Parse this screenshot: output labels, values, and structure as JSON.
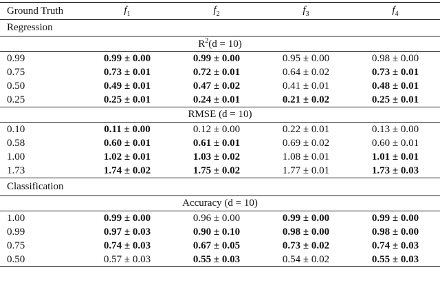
{
  "header": {
    "ground_truth": "Ground Truth",
    "functions": [
      {
        "base": "f",
        "sub": "1"
      },
      {
        "base": "f",
        "sub": "2"
      },
      {
        "base": "f",
        "sub": "3"
      },
      {
        "base": "f",
        "sub": "4"
      }
    ]
  },
  "sections": [
    {
      "title": "Regression",
      "groups": [
        {
          "metric": {
            "base": "R",
            "sup": "2",
            "rest": "(d = 10)"
          },
          "rows": [
            {
              "truth": "0.99",
              "cells": [
                {
                  "text": "0.99 ± 0.00",
                  "bold": true
                },
                {
                  "text": "0.99 ± 0.00",
                  "bold": true
                },
                {
                  "text": "0.95 ± 0.00",
                  "bold": false
                },
                {
                  "text": "0.98 ± 0.00",
                  "bold": false
                }
              ]
            },
            {
              "truth": "0.75",
              "cells": [
                {
                  "text": "0.73 ± 0.01",
                  "bold": true
                },
                {
                  "text": "0.72 ± 0.01",
                  "bold": true
                },
                {
                  "text": "0.64 ± 0.02",
                  "bold": false
                },
                {
                  "text": "0.73 ± 0.01",
                  "bold": true
                }
              ]
            },
            {
              "truth": "0.50",
              "cells": [
                {
                  "text": "0.49 ± 0.01",
                  "bold": true
                },
                {
                  "text": "0.47 ± 0.02",
                  "bold": true
                },
                {
                  "text": "0.41 ± 0.01",
                  "bold": false
                },
                {
                  "text": "0.48 ± 0.01",
                  "bold": true
                }
              ]
            },
            {
              "truth": "0.25",
              "cells": [
                {
                  "text": "0.25 ± 0.01",
                  "bold": true
                },
                {
                  "text": "0.24 ± 0.01",
                  "bold": true
                },
                {
                  "text": "0.21 ± 0.02",
                  "bold": true
                },
                {
                  "text": "0.25 ± 0.01",
                  "bold": true
                }
              ]
            }
          ]
        },
        {
          "metric": {
            "base": "RMSE (d = 10)"
          },
          "rows": [
            {
              "truth": "0.10",
              "cells": [
                {
                  "text": "0.11 ± 0.00",
                  "bold": true
                },
                {
                  "text": "0.12 ± 0.00",
                  "bold": false
                },
                {
                  "text": "0.22 ± 0.01",
                  "bold": false
                },
                {
                  "text": "0.13 ± 0.00",
                  "bold": false
                }
              ]
            },
            {
              "truth": "0.58",
              "cells": [
                {
                  "text": "0.60 ± 0.01",
                  "bold": true
                },
                {
                  "text": "0.61 ± 0.01",
                  "bold": true
                },
                {
                  "text": "0.69 ± 0.02",
                  "bold": false
                },
                {
                  "text": "0.60 ± 0.01",
                  "bold": false
                }
              ]
            },
            {
              "truth": "1.00",
              "cells": [
                {
                  "text": "1.02 ± 0.01",
                  "bold": true
                },
                {
                  "text": "1.03 ± 0.02",
                  "bold": true
                },
                {
                  "text": "1.08 ± 0.01",
                  "bold": false
                },
                {
                  "text": "1.01 ± 0.01",
                  "bold": true
                }
              ]
            },
            {
              "truth": "1.73",
              "cells": [
                {
                  "text": "1.74 ± 0.02",
                  "bold": true
                },
                {
                  "text": "1.75 ± 0.02",
                  "bold": true
                },
                {
                  "text": "1.77 ± 0.01",
                  "bold": false
                },
                {
                  "text": "1.73 ± 0.03",
                  "bold": true
                }
              ]
            }
          ]
        }
      ]
    },
    {
      "title": "Classification",
      "groups": [
        {
          "metric": {
            "base": "Accuracy (d = 10)"
          },
          "rows": [
            {
              "truth": "1.00",
              "cells": [
                {
                  "text": "0.99 ± 0.00",
                  "bold": true
                },
                {
                  "text": "0.96 ± 0.00",
                  "bold": false
                },
                {
                  "text": "0.99 ± 0.00",
                  "bold": true
                },
                {
                  "text": "0.99 ± 0.00",
                  "bold": true
                }
              ]
            },
            {
              "truth": "0.99",
              "cells": [
                {
                  "text": "0.97 ± 0.03",
                  "bold": true
                },
                {
                  "text": "0.90 ± 0.10",
                  "bold": true
                },
                {
                  "text": "0.98 ± 0.00",
                  "bold": true
                },
                {
                  "text": "0.98 ± 0.00",
                  "bold": true
                }
              ]
            },
            {
              "truth": "0.75",
              "cells": [
                {
                  "text": "0.74 ± 0.03",
                  "bold": true
                },
                {
                  "text": "0.67 ± 0.05",
                  "bold": true
                },
                {
                  "text": "0.73 ± 0.02",
                  "bold": true
                },
                {
                  "text": "0.74 ± 0.03",
                  "bold": true
                }
              ]
            },
            {
              "truth": "0.50",
              "cells": [
                {
                  "text": "0.57 ± 0.03",
                  "bold": false
                },
                {
                  "text": "0.55 ± 0.03",
                  "bold": true
                },
                {
                  "text": "0.54 ± 0.02",
                  "bold": false
                },
                {
                  "text": "0.55 ± 0.03",
                  "bold": true
                }
              ]
            }
          ]
        }
      ]
    }
  ]
}
